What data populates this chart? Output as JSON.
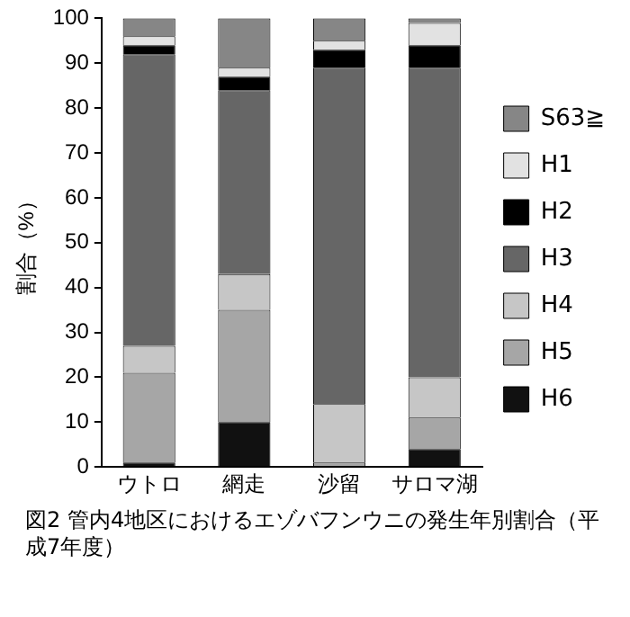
{
  "chart_data": {
    "type": "bar",
    "stacked": true,
    "title": "図2 管内4地区におけるエゾバフンウニの発生年別割合（平成7年度）",
    "ylabel": "割合（%）",
    "categories": [
      "ウトロ",
      "網走",
      "沙留",
      "サロマ湖"
    ],
    "series": [
      {
        "name": "H6",
        "color": "#111111",
        "values": [
          1,
          10,
          0,
          4
        ]
      },
      {
        "name": "H5",
        "color": "#a6a6a6",
        "values": [
          20,
          25,
          1,
          7
        ]
      },
      {
        "name": "H4",
        "color": "#c6c6c6",
        "values": [
          6,
          8,
          13,
          9
        ]
      },
      {
        "name": "H3",
        "color": "#666666",
        "values": [
          65,
          41,
          75,
          69
        ]
      },
      {
        "name": "H2",
        "color": "#000000",
        "values": [
          2,
          3,
          4,
          5
        ]
      },
      {
        "name": "H1",
        "color": "#e2e2e2",
        "values": [
          2,
          2,
          2,
          5
        ]
      },
      {
        "name": "S63≧",
        "color": "#868686",
        "values": [
          4,
          11,
          5,
          1
        ]
      }
    ],
    "ylim": [
      0,
      100
    ],
    "yticks": [
      0,
      10,
      20,
      30,
      40,
      50,
      60,
      70,
      80,
      90,
      100
    ],
    "legend": "right"
  }
}
